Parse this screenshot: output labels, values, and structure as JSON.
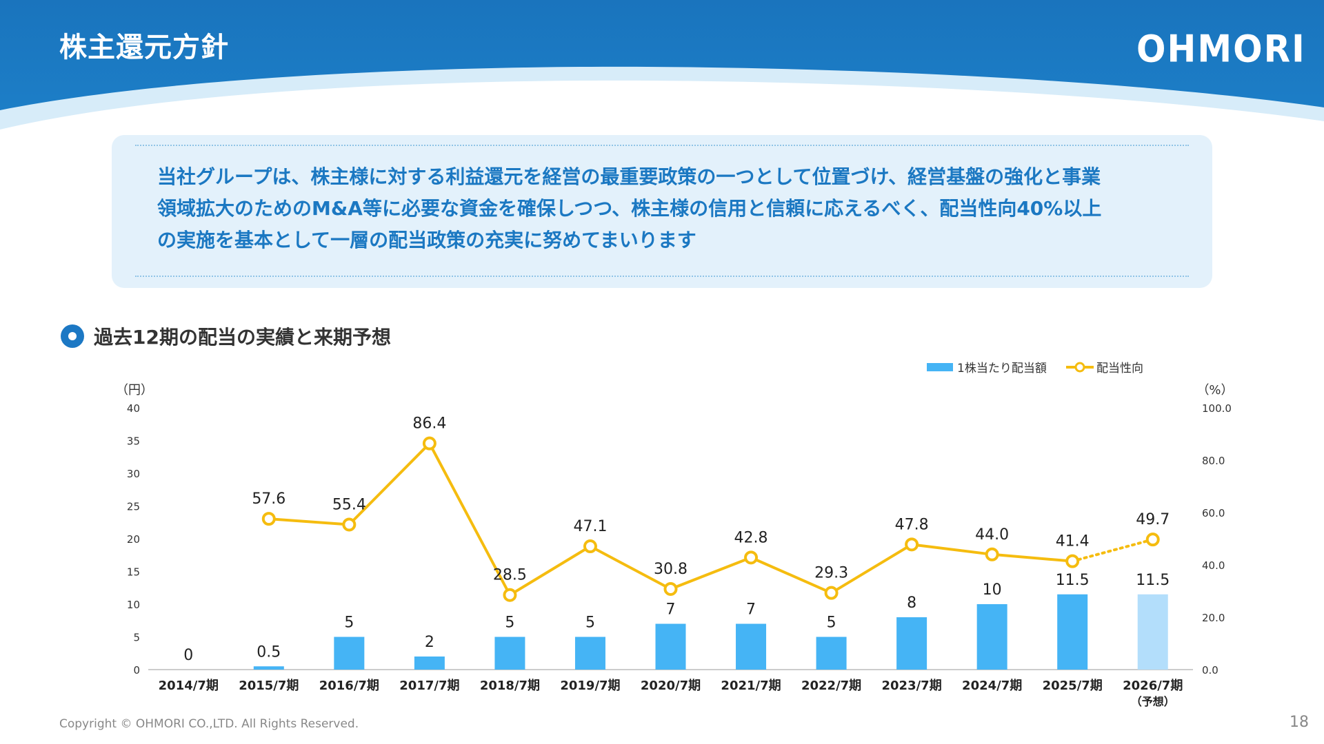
{
  "page": {
    "title": "株主還元方針",
    "logo": "OHMORI",
    "copyright": "Copyright © OHMORI CO.,LTD. All Rights Reserved.",
    "page_number": "18",
    "colors": {
      "header": "#1b76be",
      "accent_text": "#1b78c2",
      "box": "#e3f1fb"
    }
  },
  "policy": {
    "lines": [
      "当社グループは、株主様に対する利益還元を経営の最重要政策の一つとして位置づけ、経営基盤の強化と事業",
      "領域拡大のためのM&A等に必要な資金を確保しつつ、株主様の信用と信頼に応えるべく、配当性向40%以上",
      "の実施を基本として一層の配当政策の充実に努めてまいります"
    ]
  },
  "section": {
    "title": "過去12期の配当の実績と来期予想",
    "icon": "circle-bullet-icon"
  },
  "chart_data": {
    "type": "bar",
    "categories": [
      "2014/7期",
      "2015/7期",
      "2016/7期",
      "2017/7期",
      "2018/7期",
      "2019/7期",
      "2020/7期",
      "2021/7期",
      "2022/7期",
      "2023/7期",
      "2024/7期",
      "2025/7期",
      "2026/7期"
    ],
    "category_notes": [
      "",
      "",
      "",
      "",
      "",
      "",
      "",
      "",
      "",
      "",
      "",
      "",
      "（予想）"
    ],
    "ylabel_left": "（円）",
    "ylabel_right": "（%）",
    "ylim_left": [
      0,
      40
    ],
    "yticks_left": [
      "0",
      "5",
      "10",
      "15",
      "20",
      "25",
      "30",
      "35",
      "40"
    ],
    "ylim_right": [
      0,
      100
    ],
    "yticks_right": [
      "0.0",
      "20.0",
      "40.0",
      "60.0",
      "80.0",
      "100.0"
    ],
    "grid": false,
    "legend_position": "top-right",
    "series": [
      {
        "name": "1株当たり配当額",
        "type": "bar",
        "axis": "left",
        "color": "#45b4f5",
        "forecast_color": "#b3defb",
        "values": [
          0,
          0.5,
          5,
          2,
          5,
          5,
          7,
          7,
          5,
          8,
          10,
          11.5,
          11.5
        ],
        "labels": [
          "0",
          "0.5",
          "5",
          "2",
          "5",
          "5",
          "7",
          "7",
          "5",
          "8",
          "10",
          "11.5",
          "11.5"
        ]
      },
      {
        "name": "配当性向",
        "type": "line",
        "axis": "right",
        "color": "#f5bc0f",
        "values": [
          null,
          57.6,
          55.4,
          86.4,
          28.5,
          47.1,
          30.8,
          42.8,
          29.3,
          47.8,
          44.0,
          41.4,
          49.7
        ],
        "labels": [
          "",
          "57.6",
          "55.4",
          "86.4",
          "28.5",
          "47.1",
          "30.8",
          "42.8",
          "29.3",
          "47.8",
          "44.0",
          "41.4",
          "49.7"
        ],
        "forecast_from_index": 11
      }
    ]
  }
}
